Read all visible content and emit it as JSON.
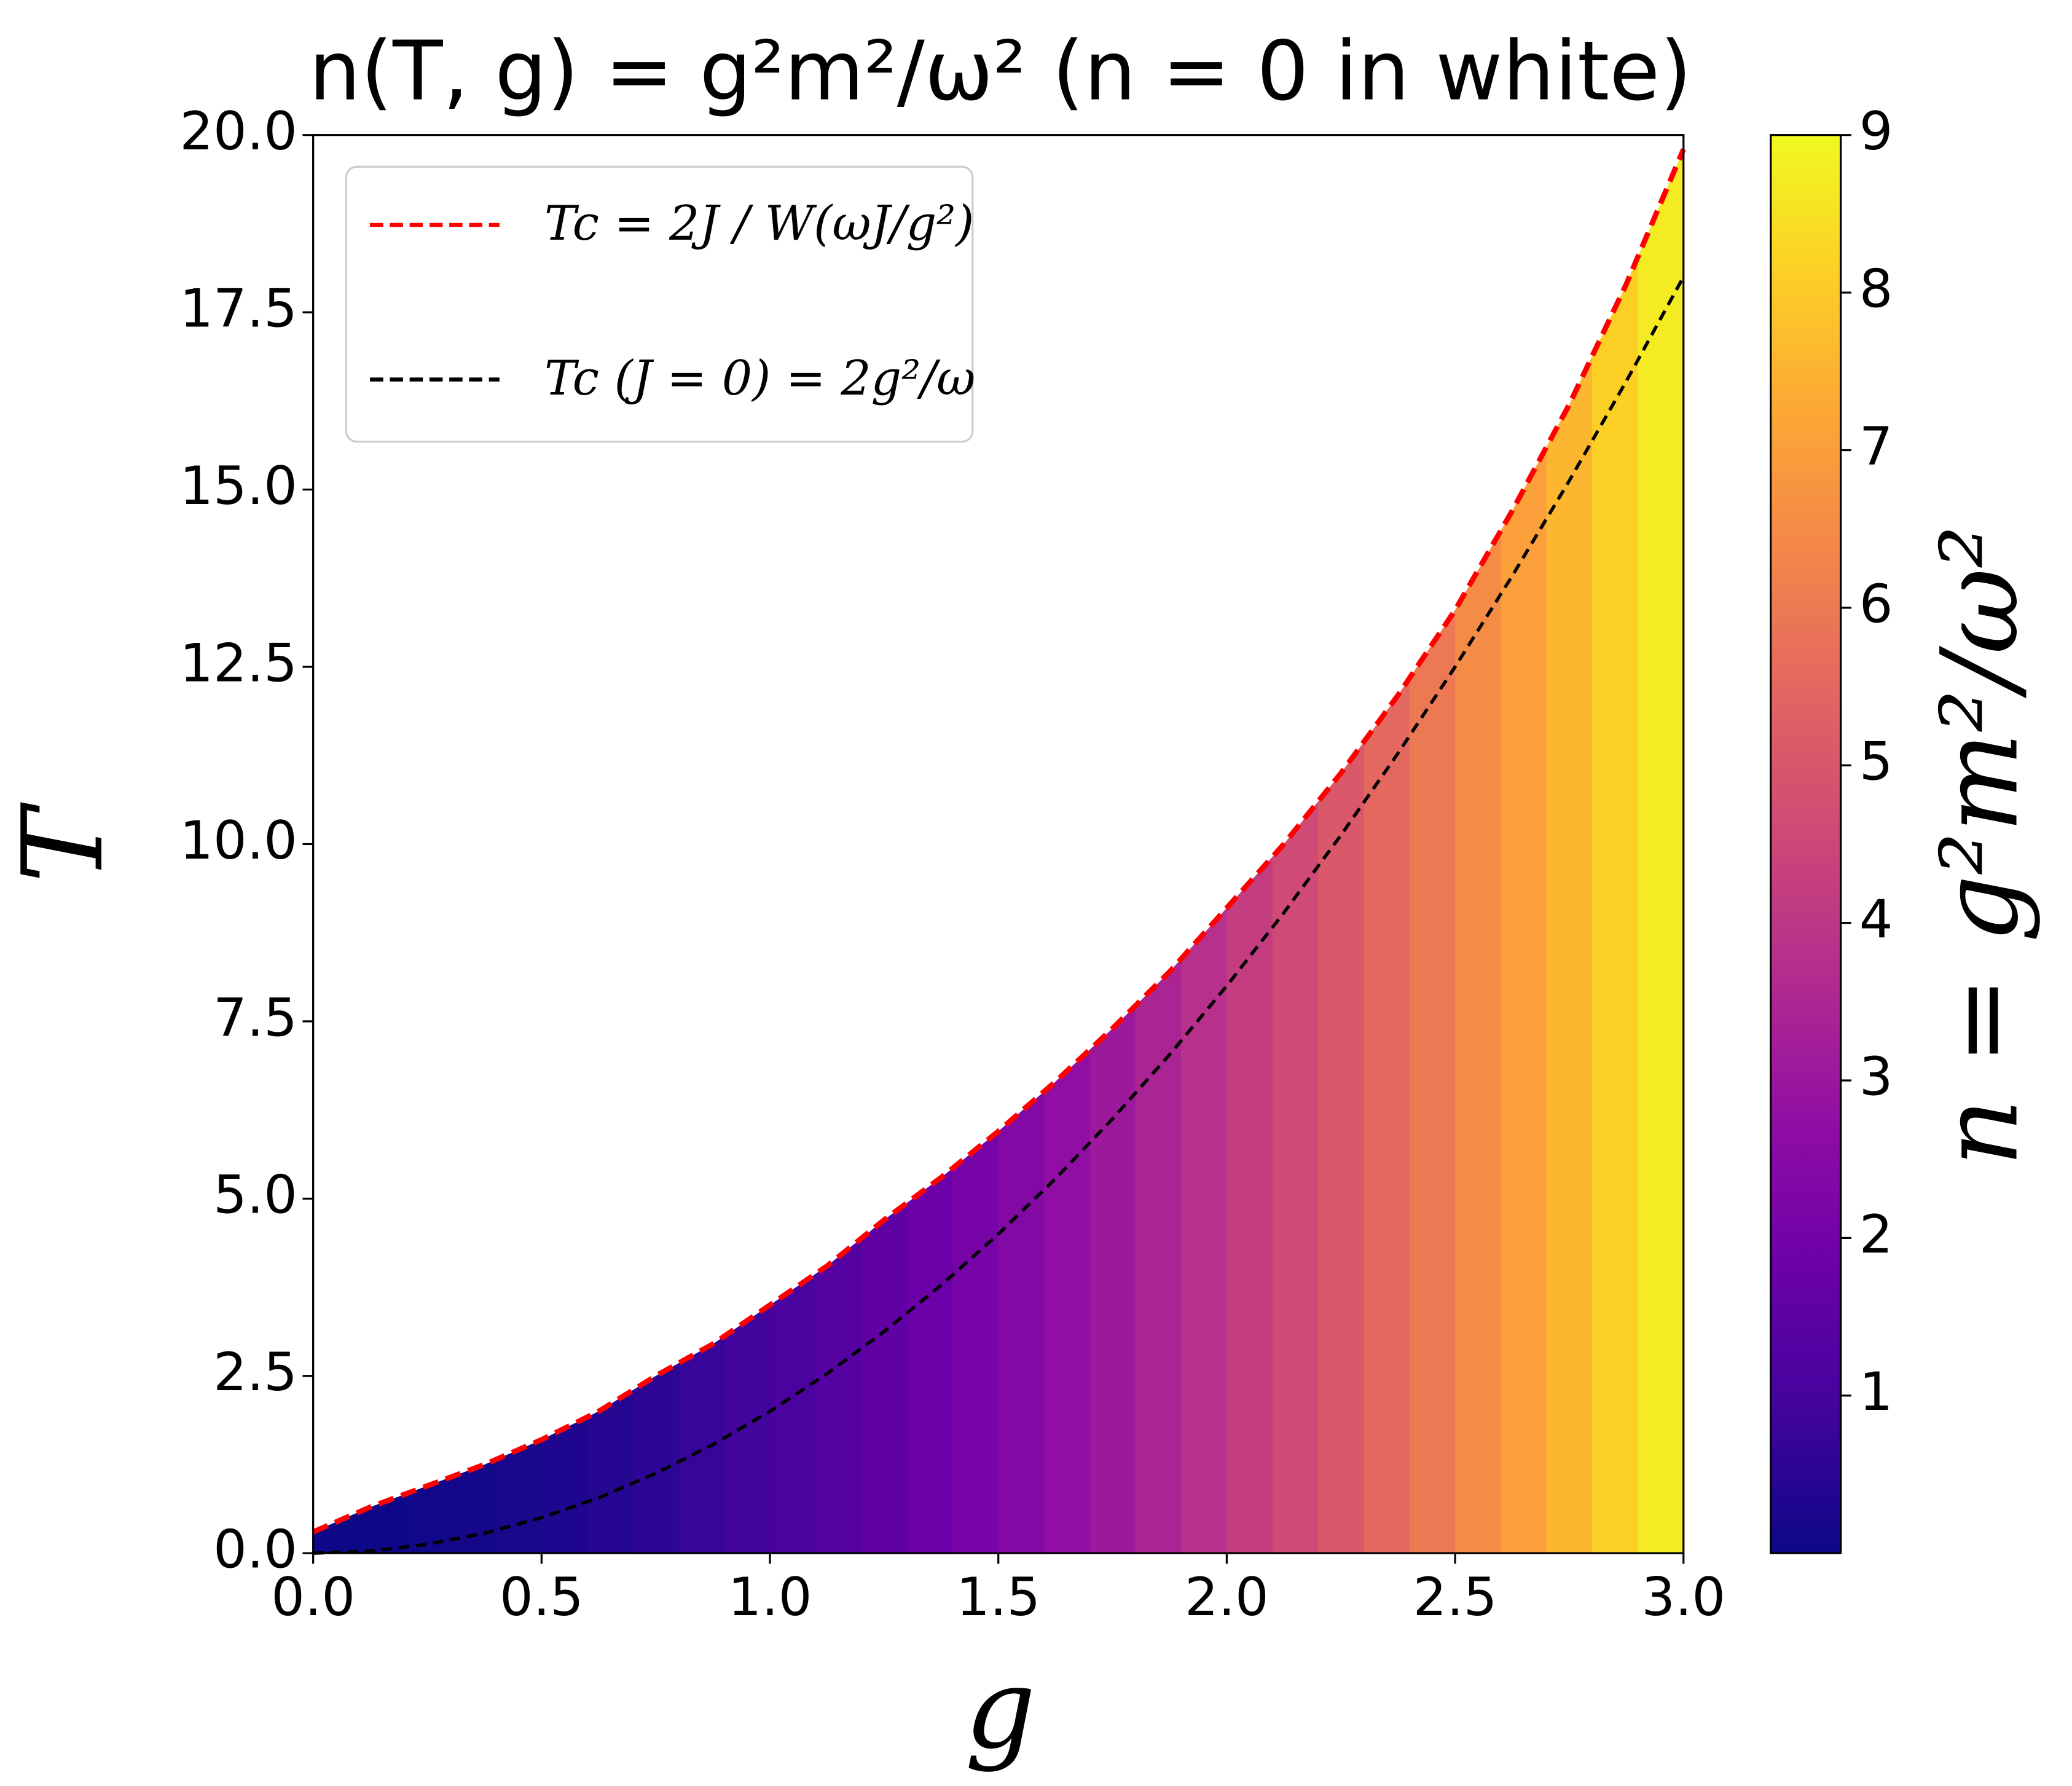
{
  "chart_data": {
    "type": "heatmap",
    "title": "n(T, g) = g²m²/ω² (n = 0 in white)",
    "xlabel": "g",
    "ylabel": "T",
    "colorbar_label": "n = g²m²/ω²",
    "colormap": "plasma",
    "xlim": [
      0,
      3
    ],
    "ylim": [
      0,
      20
    ],
    "xticks": [
      {
        "value": 0,
        "label": "0.0"
      },
      {
        "value": 0.5,
        "label": "0.5"
      },
      {
        "value": 1,
        "label": "1.0"
      },
      {
        "value": 1.5,
        "label": "1.5"
      },
      {
        "value": 2,
        "label": "2.0"
      },
      {
        "value": 2.5,
        "label": "2.5"
      },
      {
        "value": 3,
        "label": "3.0"
      }
    ],
    "yticks": [
      {
        "value": 0,
        "label": "0.0"
      },
      {
        "value": 2.5,
        "label": "2.5"
      },
      {
        "value": 5,
        "label": "5.0"
      },
      {
        "value": 7.5,
        "label": "7.5"
      },
      {
        "value": 10,
        "label": "10.0"
      },
      {
        "value": 12.5,
        "label": "12.5"
      },
      {
        "value": 15,
        "label": "15.0"
      },
      {
        "value": 17.5,
        "label": "17.5"
      },
      {
        "value": 20,
        "label": "20.0"
      }
    ],
    "clim": [
      0,
      9
    ],
    "cticks": [
      1,
      2,
      3,
      4,
      5,
      6,
      7,
      8,
      9
    ],
    "heatmap": {
      "bins": [
        0,
        0.1,
        0.2,
        0.3,
        0.4,
        0.5,
        0.6,
        0.7,
        0.8,
        0.9,
        1,
        1.1,
        1.2,
        1.3,
        1.4,
        1.5,
        1.6,
        1.7,
        1.8,
        1.9,
        2,
        2.1,
        2.2,
        2.3,
        2.4,
        2.5,
        2.6,
        2.7,
        2.8,
        2.9,
        3
      ],
      "values": [
        0.0025,
        0.0225,
        0.0625,
        0.12,
        0.2,
        0.3,
        0.42,
        0.56,
        0.72,
        0.9,
        1.1,
        1.32,
        1.56,
        1.82,
        2.1,
        2.4,
        2.72,
        3.06,
        3.42,
        3.8,
        4.2,
        4.62,
        5.06,
        5.52,
        6.0,
        6.5,
        7.02,
        7.56,
        8.12,
        8.7
      ]
    },
    "legend": "upper left",
    "series": [
      {
        "name": "Tc = 2J / W(ωJ/g²)",
        "color": "#ff0000",
        "style": "dashed",
        "x": [
          0,
          0.125,
          0.25,
          0.375,
          0.5,
          0.625,
          0.75,
          0.875,
          1,
          1.125,
          1.25,
          1.375,
          1.5,
          1.625,
          1.75,
          1.875,
          2,
          2.125,
          2.25,
          2.375,
          2.5,
          2.625,
          2.75,
          2.875,
          3
        ],
        "values": [
          0.3,
          0.65,
          0.95,
          1.25,
          1.6,
          2.0,
          2.5,
          2.95,
          3.5,
          4.05,
          4.7,
          5.3,
          5.95,
          6.65,
          7.4,
          8.2,
          9.1,
          10.0,
          11.0,
          12.1,
          13.3,
          14.7,
          16.2,
          17.9,
          19.8
        ]
      },
      {
        "name": "Tc (J = 0) = 2g²/ω",
        "color": "#000000",
        "style": "dashed",
        "x": [
          0,
          0.125,
          0.25,
          0.375,
          0.5,
          0.625,
          0.75,
          0.875,
          1,
          1.125,
          1.25,
          1.375,
          1.5,
          1.625,
          1.75,
          1.875,
          2,
          2.125,
          2.25,
          2.375,
          2.5,
          2.625,
          2.75,
          2.875,
          3
        ],
        "values": [
          0,
          0.031,
          0.125,
          0.281,
          0.5,
          0.781,
          1.125,
          1.531,
          2,
          2.531,
          3.125,
          3.781,
          4.5,
          5.281,
          6.125,
          7.031,
          8,
          9.031,
          10.125,
          11.281,
          12.5,
          13.781,
          15.125,
          16.531,
          18
        ]
      }
    ]
  }
}
